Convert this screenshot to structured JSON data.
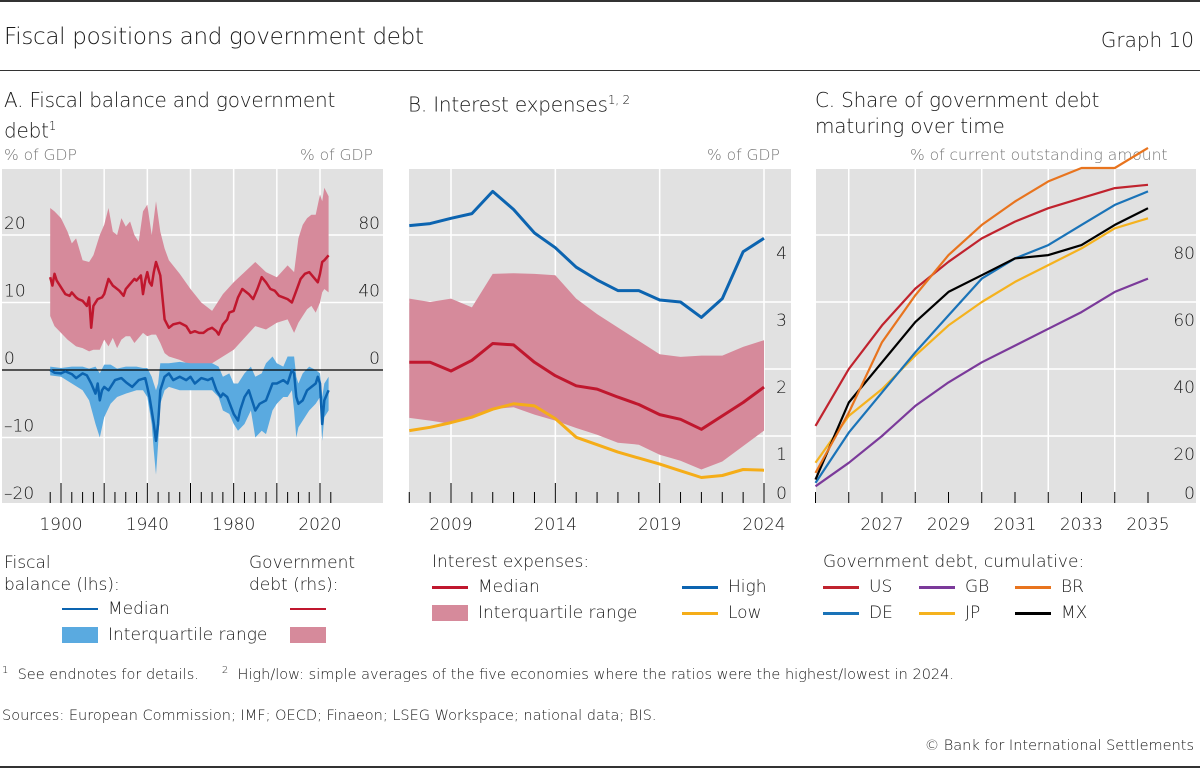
{
  "header": {
    "title": "Fiscal positions and government debt",
    "graph_number": "Graph 10"
  },
  "colors": {
    "plot_bg": "#e1e1e1",
    "debt_median": "#c0172e",
    "debt_iqr": "#d68a9b",
    "balance_median": "#0c64b0",
    "balance_iqr": "#5aaae0",
    "high": "#0c64b0",
    "low": "#f5ad18",
    "US": "#c0232e",
    "GB": "#7b3a9a",
    "BR": "#e8741e",
    "DE": "#1a73b8",
    "JP": "#f5b21e",
    "MX": "#000000"
  },
  "chart_data": [
    {
      "id": "A",
      "type": "line",
      "title": "A. Fiscal balance and government debt",
      "title_line1": "A. Fiscal balance and government",
      "title_line2": "debt",
      "title_sup": "1",
      "ylabel_left": "% of GDP",
      "ylabel_right": "% of GDP",
      "ylim_left": [
        -20,
        30
      ],
      "ylim_right": [
        0,
        120
      ],
      "yticks_left": [
        20,
        10,
        0,
        -10,
        -20
      ],
      "yticks_left_labels": [
        "20",
        "10",
        "0",
        "–10",
        "–20"
      ],
      "yticks_right": [
        80,
        40,
        0
      ],
      "yticks_right_labels": [
        "80",
        "40",
        "0"
      ],
      "xlim": [
        1880,
        2035
      ],
      "xticks": [
        1900,
        1940,
        1980,
        2020
      ],
      "xticks_labels": [
        "1900",
        "1940",
        "1980",
        "2020"
      ],
      "grid": true,
      "series": [
        {
          "name": "Government debt (rhs) – Median",
          "axis": "right",
          "x": [
            1895,
            1896,
            1897,
            1898,
            1900,
            1902,
            1904,
            1905,
            1907,
            1908,
            1910,
            1912,
            1913,
            1914,
            1915,
            1917,
            1919,
            1920,
            1922,
            1924,
            1925,
            1927,
            1929,
            1930,
            1932,
            1934,
            1935,
            1937,
            1938,
            1939,
            1940,
            1941,
            1942,
            1943,
            1944,
            1946,
            1948,
            1950,
            1952,
            1955,
            1958,
            1960,
            1962,
            1964,
            1966,
            1968,
            1970,
            1972,
            1973,
            1975,
            1977,
            1978,
            1980,
            1982,
            1984,
            1986,
            1987,
            1989,
            1991,
            1993,
            1995,
            1997,
            1999,
            2001,
            2003,
            2005,
            2007,
            2009,
            2011,
            2013,
            2015,
            2017,
            2019,
            2020,
            2021,
            2022,
            2024
          ],
          "values": [
            55,
            50,
            57,
            53,
            49,
            45,
            44,
            46,
            43,
            42,
            41,
            38,
            43,
            25,
            38,
            42,
            43,
            45,
            54,
            50,
            49,
            47,
            44,
            48,
            51,
            54,
            53,
            56,
            45,
            53,
            58,
            52,
            50,
            58,
            64,
            56,
            30,
            25,
            27,
            28,
            26,
            22,
            23,
            22,
            22,
            24,
            25,
            23,
            21,
            27,
            30,
            34,
            35,
            43,
            48,
            46,
            45,
            42,
            48,
            55,
            52,
            48,
            47,
            44,
            43,
            42,
            40,
            47,
            54,
            57,
            58,
            55,
            52,
            57,
            64,
            65,
            68
          ]
        },
        {
          "name": "Government debt (rhs) – Interquartile range",
          "axis": "right",
          "type": "band",
          "x": [
            1895,
            1897,
            1900,
            1903,
            1905,
            1907,
            1910,
            1913,
            1915,
            1918,
            1920,
            1922,
            1924,
            1926,
            1928,
            1930,
            1932,
            1934,
            1936,
            1938,
            1940,
            1942,
            1944,
            1946,
            1948,
            1950,
            1955,
            1960,
            1965,
            1970,
            1975,
            1980,
            1985,
            1990,
            1995,
            2000,
            2005,
            2008,
            2010,
            2012,
            2014,
            2016,
            2018,
            2020,
            2021,
            2022,
            2024
          ],
          "upper": [
            96,
            94,
            90,
            82,
            75,
            78,
            65,
            64,
            68,
            80,
            86,
            96,
            82,
            80,
            90,
            85,
            88,
            80,
            76,
            94,
            98,
            80,
            100,
            82,
            72,
            65,
            57,
            48,
            40,
            35,
            45,
            52,
            58,
            64,
            58,
            55,
            62,
            58,
            78,
            86,
            90,
            92,
            92,
            104,
            100,
            108,
            103
          ],
          "lower": [
            32,
            26,
            22,
            18,
            16,
            14,
            13,
            11,
            12,
            12,
            18,
            14,
            19,
            13,
            18,
            20,
            20,
            16,
            19,
            22,
            20,
            21,
            21,
            16,
            10,
            8,
            6,
            3,
            2,
            4,
            8,
            12,
            19,
            26,
            24,
            28,
            30,
            22,
            28,
            32,
            36,
            38,
            34,
            40,
            46,
            48,
            46
          ]
        },
        {
          "name": "Fiscal balance (lhs) – Median",
          "axis": "left",
          "x": [
            1895,
            1897,
            1900,
            1902,
            1905,
            1907,
            1910,
            1912,
            1914,
            1916,
            1917,
            1918,
            1919,
            1920,
            1922,
            1925,
            1928,
            1930,
            1933,
            1936,
            1939,
            1940,
            1941,
            1942,
            1943,
            1944,
            1945,
            1946,
            1948,
            1950,
            1952,
            1955,
            1958,
            1960,
            1962,
            1965,
            1968,
            1970,
            1972,
            1974,
            1975,
            1977,
            1980,
            1982,
            1983,
            1985,
            1987,
            1990,
            1992,
            1995,
            1998,
            2000,
            2003,
            2005,
            2007,
            2008,
            2009,
            2010,
            2012,
            2014,
            2016,
            2018,
            2019,
            2020,
            2021,
            2022,
            2024
          ],
          "values": [
            0,
            -0.4,
            -0.5,
            -0.2,
            -0.6,
            -1.2,
            -0.5,
            -0.8,
            -2,
            -3.5,
            -2,
            -4.5,
            -3,
            -2.5,
            -3,
            -1.5,
            -1.2,
            -1.8,
            -2.5,
            -1.5,
            -1.2,
            -2.5,
            -4,
            -6,
            -8,
            -10.5,
            -8,
            -3,
            -1,
            -0.5,
            -1.5,
            -1,
            -1.5,
            -1,
            -2,
            -1.2,
            -1.5,
            -1.2,
            -3,
            -4,
            -3.5,
            -4,
            -6.5,
            -7.5,
            -6,
            -4,
            -3,
            -6,
            -5,
            -4.5,
            -2,
            -2,
            -1.5,
            -2,
            0,
            -0.5,
            -4,
            -5,
            -4.5,
            -3,
            -2.5,
            -2,
            -1,
            -2,
            -8,
            -4.5,
            -3
          ]
        },
        {
          "name": "Fiscal balance (lhs) – Interquartile range",
          "axis": "left",
          "type": "band",
          "x": [
            1895,
            1900,
            1905,
            1910,
            1913,
            1916,
            1918,
            1920,
            1923,
            1926,
            1930,
            1935,
            1938,
            1940,
            1942,
            1943,
            1944,
            1945,
            1946,
            1948,
            1950,
            1955,
            1960,
            1965,
            1970,
            1973,
            1975,
            1978,
            1980,
            1982,
            1985,
            1988,
            1990,
            1993,
            1995,
            1998,
            2000,
            2003,
            2005,
            2007,
            2008,
            2009,
            2010,
            2012,
            2015,
            2018,
            2020,
            2021,
            2022,
            2024
          ],
          "upper": [
            0.5,
            0.3,
            0.5,
            0.5,
            0.2,
            0.5,
            -0.5,
            0.8,
            0.8,
            0.2,
            0.5,
            0.5,
            0.3,
            0.3,
            -1,
            -2,
            -3,
            -2,
            1,
            1,
            1,
            1.2,
            1,
            1,
            1,
            0.5,
            -1,
            -0.5,
            -2,
            -2,
            -0.5,
            0.5,
            -1,
            -0.5,
            1,
            2,
            1,
            0.5,
            2,
            2,
            2,
            -1,
            -2,
            -0.5,
            0.5,
            0,
            -0.5,
            -4,
            -2,
            -1
          ],
          "lower": [
            -0.8,
            -1,
            -2,
            -3,
            -4.5,
            -8,
            -10,
            -7,
            -5,
            -4,
            -3.5,
            -3,
            -3,
            -4,
            -8,
            -12,
            -15.5,
            -11,
            -5,
            -3,
            -2.5,
            -3,
            -3,
            -3,
            -3,
            -4,
            -6,
            -6.5,
            -8,
            -9,
            -8,
            -6,
            -10,
            -9,
            -9.5,
            -6,
            -5,
            -4,
            -4,
            -3,
            -6,
            -10,
            -8.5,
            -7.5,
            -6,
            -5,
            -4,
            -10.5,
            -7,
            -6
          ]
        }
      ],
      "legend": {
        "group_left_title_line1": "Fiscal",
        "group_left_title_line2": "balance (lhs):",
        "group_right_title_line1": "Government",
        "group_right_title_line2": "debt (rhs):",
        "median": "Median",
        "iqr": "Interquartile range"
      }
    },
    {
      "id": "B",
      "type": "line",
      "title": "B. Interest expenses",
      "title_sup": "1, 2",
      "ylabel_right": "% of GDP",
      "ylim": [
        0,
        4.8
      ],
      "yticks": [
        4,
        3,
        2,
        1,
        0
      ],
      "yticks_labels": [
        "4",
        "3",
        "2",
        "1",
        "0"
      ],
      "xlim": [
        2007,
        2025
      ],
      "xticks": [
        2009,
        2014,
        2019,
        2024
      ],
      "xticks_labels": [
        "2009",
        "2014",
        "2019",
        "2024"
      ],
      "grid": true,
      "x": [
        2007,
        2008,
        2009,
        2010,
        2011,
        2012,
        2013,
        2014,
        2015,
        2016,
        2017,
        2018,
        2019,
        2020,
        2021,
        2022,
        2023,
        2024
      ],
      "series": [
        {
          "name": "High",
          "values": [
            4.14,
            4.17,
            4.25,
            4.32,
            4.65,
            4.38,
            4.03,
            3.81,
            3.52,
            3.33,
            3.17,
            3.17,
            3.03,
            3.0,
            2.77,
            3.05,
            3.75,
            3.95
          ]
        },
        {
          "name": "Median",
          "values": [
            2.1,
            2.1,
            1.97,
            2.13,
            2.38,
            2.36,
            2.1,
            1.9,
            1.75,
            1.7,
            1.58,
            1.47,
            1.32,
            1.25,
            1.1,
            1.3,
            1.5,
            1.73
          ]
        },
        {
          "name": "Low",
          "values": [
            1.08,
            1.13,
            1.2,
            1.28,
            1.4,
            1.48,
            1.45,
            1.26,
            0.98,
            0.87,
            0.76,
            0.67,
            0.58,
            0.48,
            0.38,
            0.41,
            0.5,
            0.49
          ]
        },
        {
          "name": "Interquartile range",
          "type": "band",
          "upper": [
            3.05,
            3.0,
            3.05,
            2.92,
            3.42,
            3.43,
            3.42,
            3.4,
            3.05,
            2.82,
            2.62,
            2.42,
            2.22,
            2.18,
            2.2,
            2.2,
            2.33,
            2.43
          ],
          "lower": [
            1.27,
            1.23,
            1.18,
            1.28,
            1.4,
            1.43,
            1.32,
            1.23,
            1.12,
            1.02,
            0.9,
            0.87,
            0.72,
            0.63,
            0.5,
            0.62,
            0.85,
            1.08
          ]
        }
      ],
      "legend": {
        "title": "Interest expenses:",
        "median": "Median",
        "iqr": "Interquartile range",
        "high": "High",
        "low": "Low"
      }
    },
    {
      "id": "C",
      "type": "line",
      "title_line1": "C. Share of government debt",
      "title_line2": "maturing over time",
      "ylabel_right": "% of current outstanding amount",
      "ylim": [
        0,
        100
      ],
      "yticks": [
        80,
        60,
        40,
        20,
        0
      ],
      "yticks_labels": [
        "80",
        "60",
        "40",
        "20",
        "0"
      ],
      "xlim": [
        2025,
        2036
      ],
      "xticks": [
        2027,
        2029,
        2031,
        2033,
        2035
      ],
      "xticks_labels": [
        "2027",
        "2029",
        "2031",
        "2033",
        "2035"
      ],
      "grid": true,
      "x": [
        2025,
        2026,
        2027,
        2028,
        2029,
        2030,
        2031,
        2032,
        2033,
        2034,
        2035
      ],
      "series": [
        {
          "name": "US",
          "values": [
            23,
            40,
            53,
            64,
            72,
            79,
            84,
            88,
            91,
            94,
            95
          ]
        },
        {
          "name": "GB",
          "values": [
            5,
            12,
            20,
            29,
            36,
            42,
            47,
            52,
            57,
            63,
            67
          ]
        },
        {
          "name": "BR",
          "values": [
            9,
            27,
            48,
            62,
            74,
            83,
            90,
            96,
            100,
            100,
            106
          ]
        },
        {
          "name": "DE",
          "values": [
            6,
            21,
            33,
            45,
            56,
            67,
            73,
            77,
            83,
            89,
            93
          ]
        },
        {
          "name": "JP",
          "values": [
            12,
            26,
            34,
            44,
            53,
            60,
            66,
            71,
            76,
            82,
            85
          ]
        },
        {
          "name": "MX",
          "values": [
            7,
            30,
            42,
            54,
            63,
            68,
            73,
            74,
            77,
            83,
            88
          ]
        }
      ],
      "legend": {
        "title": "Government debt, cumulative:",
        "items": [
          "US",
          "GB",
          "BR",
          "DE",
          "JP",
          "MX"
        ]
      }
    }
  ],
  "footnotes": {
    "n1_marker": "1",
    "n1": "See endnotes for details.",
    "n2_marker": "2",
    "n2": "High/low: simple averages of the five economies where the ratios were the highest/lowest in 2024.",
    "sources": "Sources: European Commission; IMF; OECD; Finaeon; LSEG Workspace; national data; BIS.",
    "copyright": "© Bank for International Settlements"
  }
}
